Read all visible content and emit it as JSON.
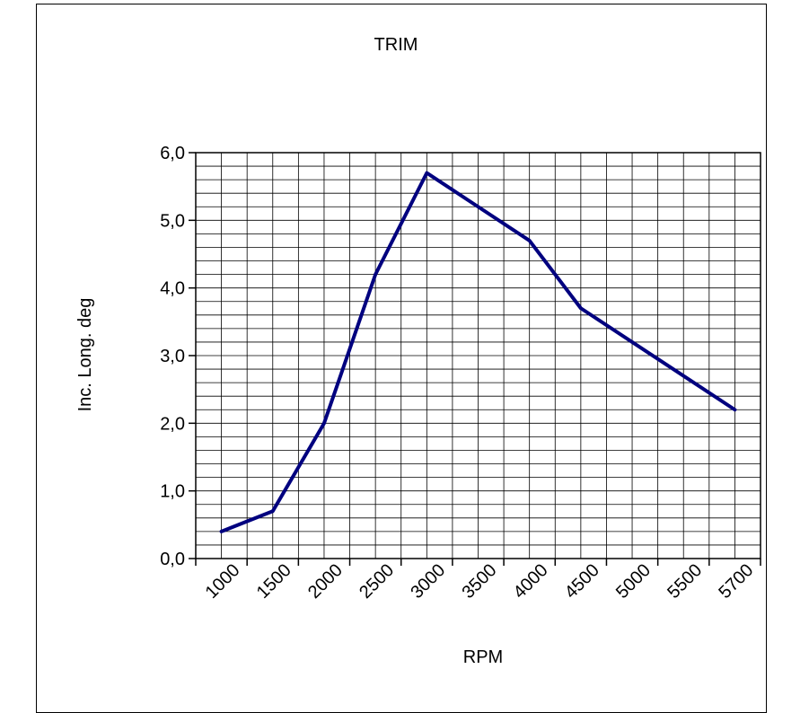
{
  "chart_data": {
    "type": "line",
    "title": "TRIM",
    "xlabel": "RPM",
    "ylabel": "Inc. Long. deg",
    "categories": [
      "1000",
      "1500",
      "2000",
      "2500",
      "3000",
      "3500",
      "4000",
      "4500",
      "5000",
      "5500",
      "5700"
    ],
    "series": [
      {
        "values": [
          0.4,
          0.7,
          2.0,
          4.2,
          5.7,
          5.2,
          4.7,
          3.7,
          3.2,
          2.7,
          2.2
        ]
      }
    ],
    "ylim": [
      0,
      6
    ],
    "y_ticks": [
      "0,0",
      "1,0",
      "2,0",
      "3,0",
      "4,0",
      "5,0",
      "6,0"
    ],
    "grid": true,
    "line_color": "#00007f"
  }
}
